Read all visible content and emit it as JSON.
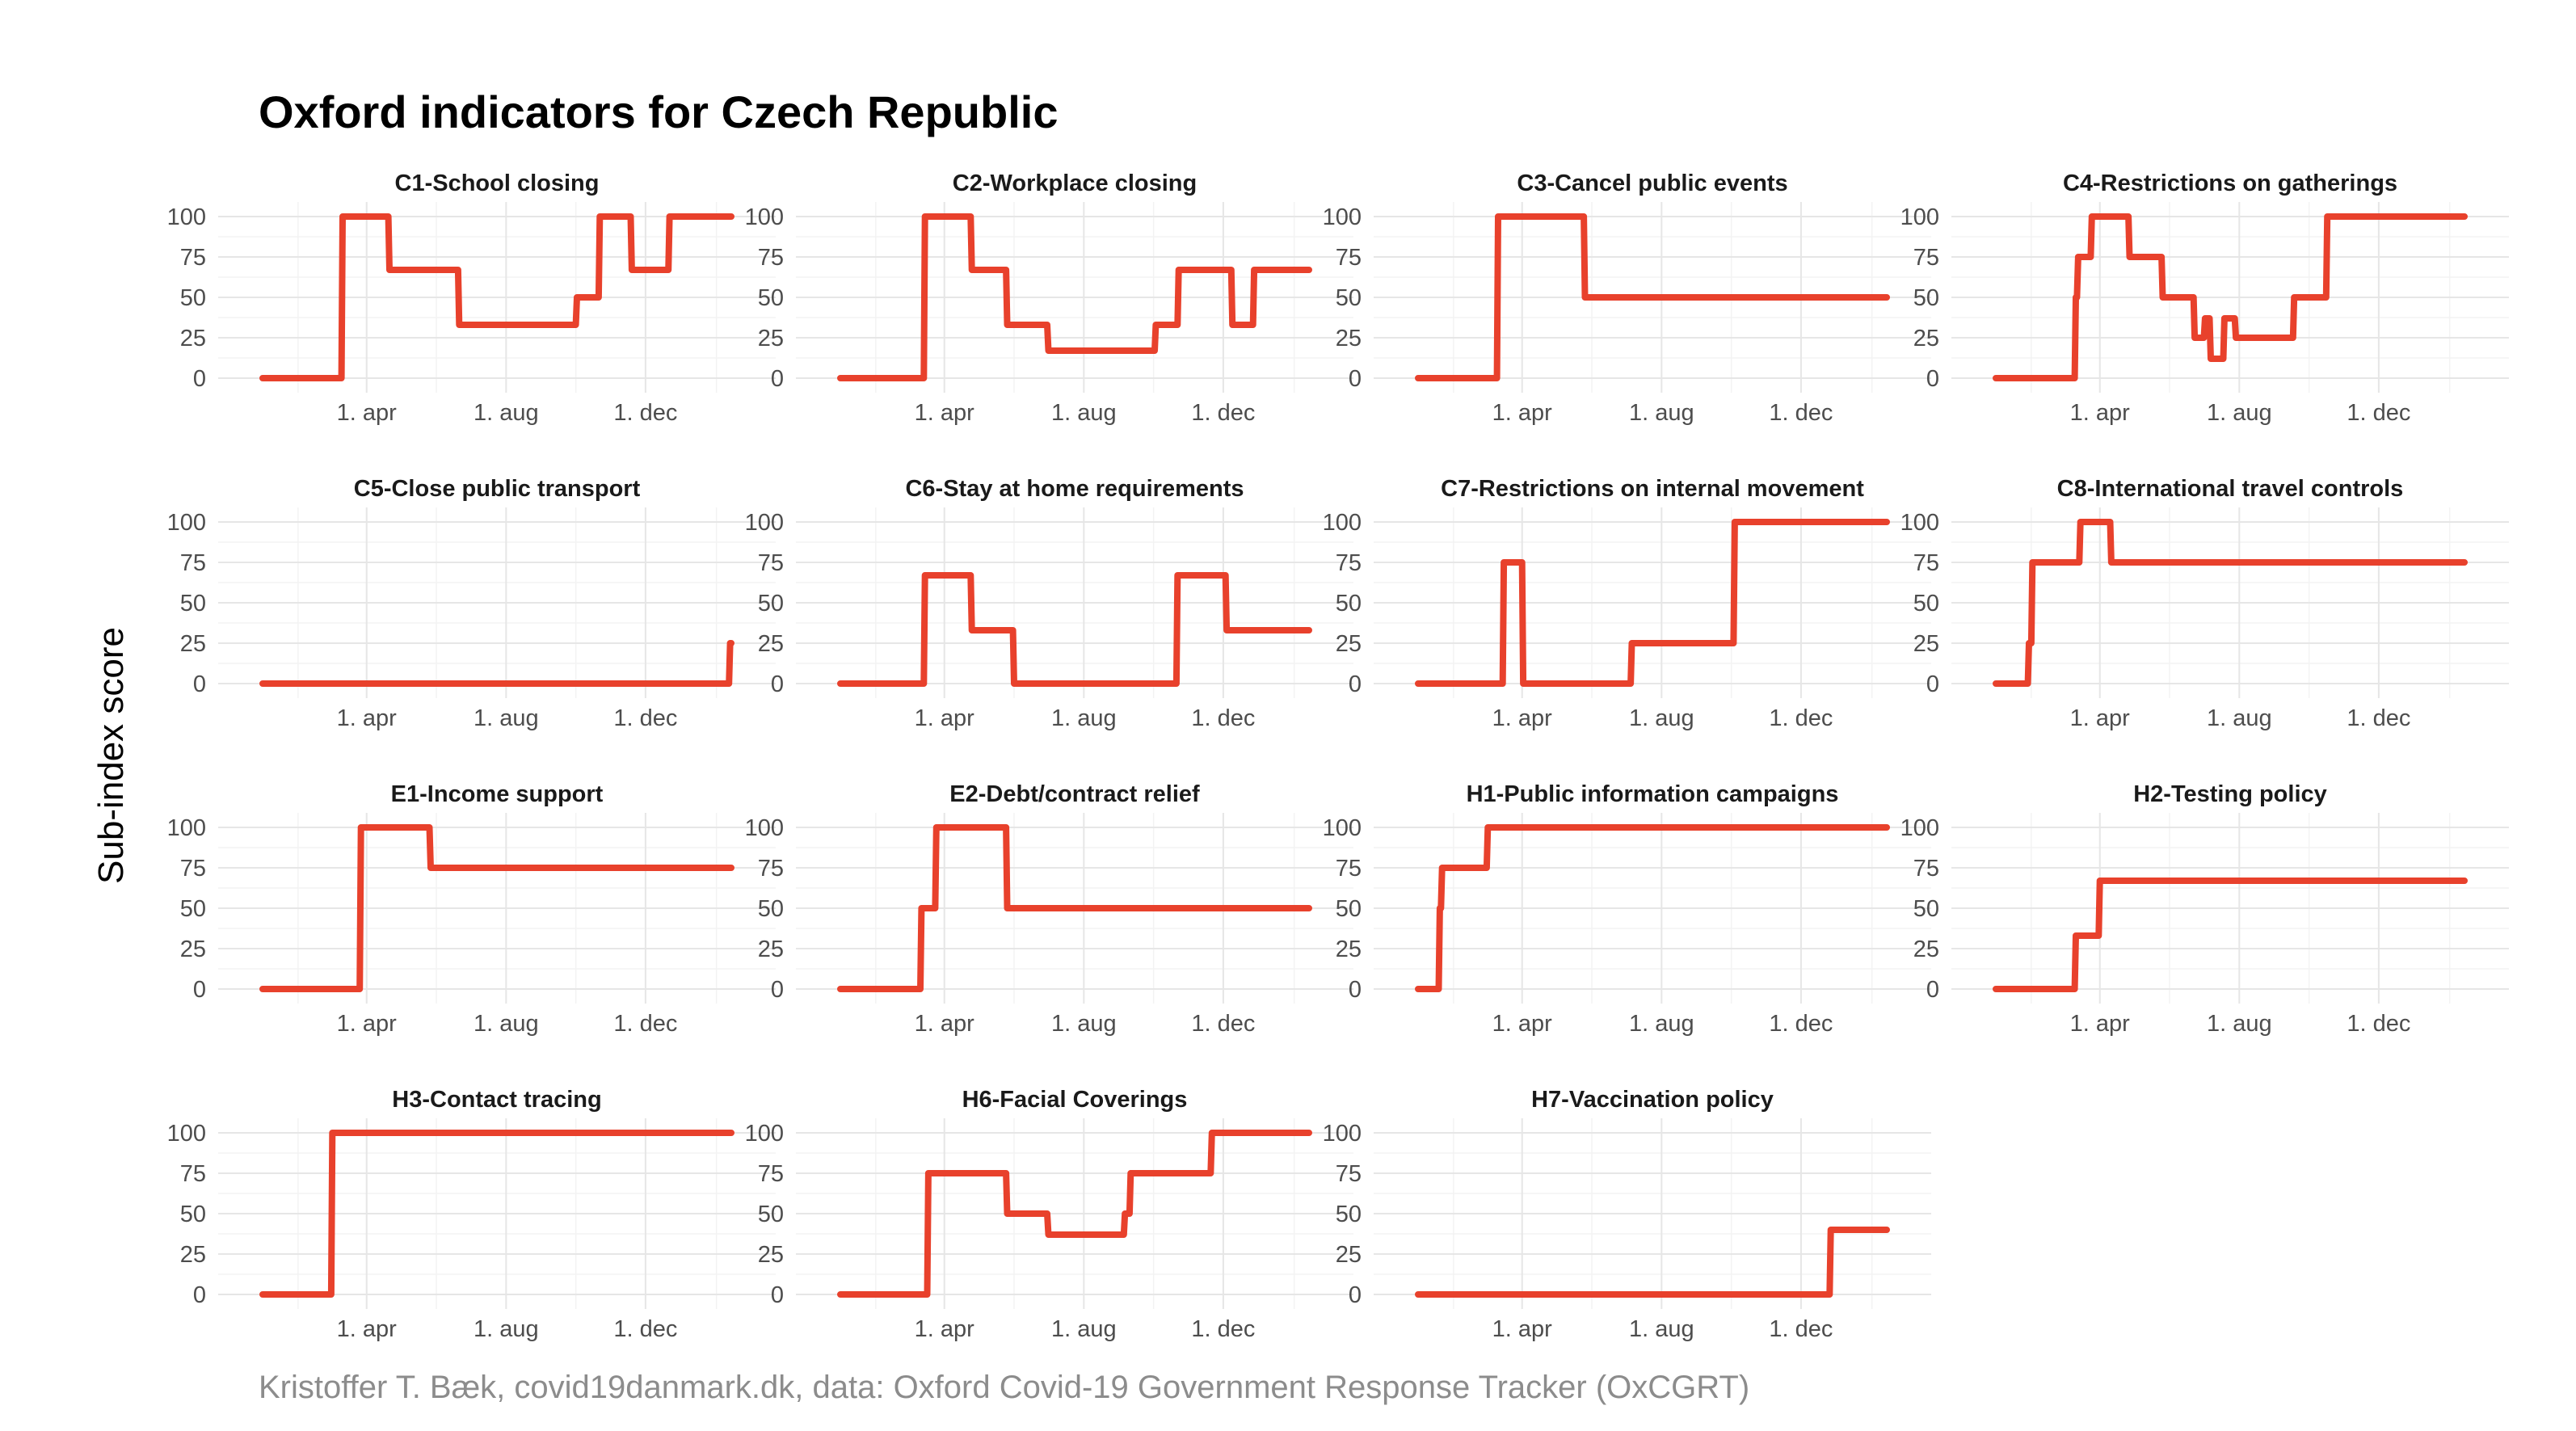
{
  "title": "Oxford indicators for Czech Republic",
  "y_axis_label": "Sub-index score",
  "caption": "Kristoffer T. Bæk, covid19danmark.dk, data: Oxford Covid-19 Government Response Tracker (OxCGRT)",
  "colors": {
    "line": "#e8412c",
    "grid": "#e6e6e6"
  },
  "chart_data": [
    {
      "type": "line",
      "title": "C1-School closing",
      "ylim": [
        0,
        100
      ],
      "yticks": [
        0,
        25,
        50,
        75,
        100
      ],
      "x_ticks": [
        "1. apr",
        "1. aug",
        "1. dec"
      ],
      "x": [
        "2020-01-01",
        "2020-03-10",
        "2020-03-11",
        "2020-04-20",
        "2020-04-21",
        "2020-06-20",
        "2020-06-21",
        "2020-10-01",
        "2020-10-02",
        "2020-10-21",
        "2020-10-22",
        "2020-11-18",
        "2020-11-19",
        "2020-12-21",
        "2020-12-22",
        "2021-02-14"
      ],
      "values": [
        0,
        0,
        100,
        100,
        67,
        67,
        33,
        33,
        50,
        50,
        100,
        100,
        67,
        67,
        100,
        100
      ]
    },
    {
      "type": "line",
      "title": "C2-Workplace closing",
      "ylim": [
        0,
        100
      ],
      "yticks": [
        0,
        25,
        50,
        75,
        100
      ],
      "x_ticks": [
        "1. apr",
        "1. aug",
        "1. dec"
      ],
      "x": [
        "2020-01-01",
        "2020-03-14",
        "2020-03-15",
        "2020-04-24",
        "2020-04-25",
        "2020-05-25",
        "2020-05-26",
        "2020-06-30",
        "2020-07-01",
        "2020-10-02",
        "2020-10-03",
        "2020-10-22",
        "2020-10-23",
        "2020-12-08",
        "2020-12-09",
        "2020-12-27",
        "2020-12-28",
        "2021-02-14"
      ],
      "values": [
        0,
        0,
        100,
        100,
        67,
        67,
        33,
        33,
        17,
        17,
        33,
        33,
        67,
        67,
        33,
        33,
        67,
        67
      ]
    },
    {
      "type": "line",
      "title": "C3-Cancel public events",
      "ylim": [
        0,
        100
      ],
      "yticks": [
        0,
        25,
        50,
        75,
        100
      ],
      "x_ticks": [
        "1. apr",
        "1. aug",
        "1. dec"
      ],
      "x": [
        "2020-01-01",
        "2020-03-10",
        "2020-03-11",
        "2020-05-25",
        "2020-05-26",
        "2021-02-14"
      ],
      "values": [
        0,
        0,
        100,
        100,
        50,
        50
      ]
    },
    {
      "type": "line",
      "title": "C4-Restrictions on gatherings",
      "ylim": [
        0,
        100
      ],
      "yticks": [
        0,
        25,
        50,
        75,
        100
      ],
      "x_ticks": [
        "1. apr",
        "1. aug",
        "1. dec"
      ],
      "x": [
        "2020-01-01",
        "2020-03-10",
        "2020-03-11",
        "2020-03-12",
        "2020-03-13",
        "2020-03-24",
        "2020-03-25",
        "2020-04-26",
        "2020-04-27",
        "2020-05-25",
        "2020-05-26",
        "2020-06-22",
        "2020-06-23",
        "2020-07-01",
        "2020-07-02",
        "2020-07-06",
        "2020-07-07",
        "2020-07-18",
        "2020-07-19",
        "2020-07-28",
        "2020-07-29",
        "2020-09-17",
        "2020-09-18",
        "2020-10-16",
        "2020-10-17",
        "2021-02-14"
      ],
      "values": [
        0,
        0,
        50,
        50,
        75,
        75,
        100,
        100,
        75,
        75,
        50,
        50,
        25,
        25,
        37,
        37,
        12,
        12,
        37,
        37,
        25,
        25,
        50,
        50,
        100,
        100
      ]
    },
    {
      "type": "line",
      "title": "C5-Close public transport",
      "ylim": [
        0,
        100
      ],
      "yticks": [
        0,
        25,
        50,
        75,
        100
      ],
      "x_ticks": [
        "1. apr",
        "1. dec",
        "1. aug"
      ],
      "x": [
        "2020-01-01",
        "2021-02-12",
        "2021-02-13",
        "2021-02-14"
      ],
      "values": [
        0,
        0,
        25,
        25
      ]
    },
    {
      "type": "line",
      "title": "C6-Stay at home requirements",
      "ylim": [
        0,
        100
      ],
      "yticks": [
        0,
        25,
        50,
        75,
        100
      ],
      "x_ticks": [
        "1. apr",
        "1. aug",
        "1. dec"
      ],
      "x": [
        "2020-01-01",
        "2020-03-14",
        "2020-03-15",
        "2020-04-24",
        "2020-04-25",
        "2020-05-31",
        "2020-06-01",
        "2020-10-21",
        "2020-10-22",
        "2020-12-03",
        "2020-12-04",
        "2021-02-14"
      ],
      "values": [
        0,
        0,
        67,
        67,
        33,
        33,
        0,
        0,
        67,
        67,
        33,
        33
      ]
    },
    {
      "type": "line",
      "title": "C7-Restrictions on internal movement",
      "ylim": [
        0,
        100
      ],
      "yticks": [
        0,
        25,
        50,
        75,
        100
      ],
      "x_ticks": [
        "1. apr",
        "1. aug",
        "1. dec"
      ],
      "x": [
        "2020-01-01",
        "2020-03-15",
        "2020-03-16",
        "2020-04-01",
        "2020-04-02",
        "2020-07-05",
        "2020-07-06",
        "2020-10-03",
        "2020-10-04",
        "2021-02-14"
      ],
      "values": [
        0,
        0,
        75,
        75,
        0,
        0,
        25,
        25,
        100,
        100
      ]
    },
    {
      "type": "line",
      "title": "C8-International travel controls",
      "ylim": [
        0,
        100
      ],
      "yticks": [
        0,
        25,
        50,
        75,
        100
      ],
      "x_ticks": [
        "1. apr",
        "1. aug",
        "1. dec"
      ],
      "x": [
        "2020-01-01",
        "2020-01-29",
        "2020-01-30",
        "2020-02-01",
        "2020-02-02",
        "2020-03-14",
        "2020-03-15",
        "2020-04-10",
        "2020-04-11",
        "2021-02-14"
      ],
      "values": [
        0,
        0,
        25,
        25,
        75,
        75,
        100,
        100,
        75,
        75
      ]
    },
    {
      "type": "line",
      "title": "E1-Income support",
      "ylim": [
        0,
        100
      ],
      "yticks": [
        0,
        25,
        50,
        75,
        100
      ],
      "x_ticks": [
        "1. apr",
        "1. aug",
        "1. dec"
      ],
      "x": [
        "2020-01-01",
        "2020-03-26",
        "2020-03-27",
        "2020-05-26",
        "2020-05-27",
        "2021-02-14"
      ],
      "values": [
        0,
        0,
        100,
        100,
        75,
        75
      ]
    },
    {
      "type": "line",
      "title": "E2-Debt/contract relief",
      "ylim": [
        0,
        100
      ],
      "yticks": [
        0,
        25,
        50,
        75,
        100
      ],
      "x_ticks": [
        "1. apr",
        "1. aug",
        "1. dec"
      ],
      "x": [
        "2020-01-01",
        "2020-03-11",
        "2020-03-12",
        "2020-03-24",
        "2020-03-25",
        "2020-05-25",
        "2020-05-26",
        "2021-02-14"
      ],
      "values": [
        0,
        0,
        50,
        50,
        100,
        100,
        50,
        50
      ]
    },
    {
      "type": "line",
      "title": "H1-Public information campaigns",
      "ylim": [
        0,
        100
      ],
      "yticks": [
        0,
        25,
        50,
        75,
        100
      ],
      "x_ticks": [
        "1. apr",
        "1. aug",
        "1. dec"
      ],
      "x": [
        "2020-01-01",
        "2020-01-19",
        "2020-01-20",
        "2020-01-21",
        "2020-01-22",
        "2020-03-01",
        "2020-03-02",
        "2021-02-14"
      ],
      "values": [
        0,
        0,
        50,
        50,
        75,
        75,
        100,
        100
      ]
    },
    {
      "type": "line",
      "title": "H2-Testing policy",
      "ylim": [
        0,
        100
      ],
      "yticks": [
        0,
        25,
        50,
        75,
        100
      ],
      "x_ticks": [
        "1. apr",
        "1. aug",
        "1. dec"
      ],
      "x": [
        "2020-01-01",
        "2020-03-10",
        "2020-03-11",
        "2020-03-31",
        "2020-04-01",
        "2021-02-14"
      ],
      "values": [
        0,
        0,
        33,
        33,
        67,
        67
      ]
    },
    {
      "type": "line",
      "title": "H3-Contact tracing",
      "ylim": [
        0,
        100
      ],
      "yticks": [
        0,
        25,
        50,
        75,
        100
      ],
      "x_ticks": [
        "1. apr",
        "1. aug",
        "1. dec"
      ],
      "x": [
        "2020-01-01",
        "2020-03-01",
        "2020-03-02",
        "2021-02-14"
      ],
      "values": [
        0,
        0,
        100,
        100
      ]
    },
    {
      "type": "line",
      "title": "H6-Facial Coverings",
      "ylim": [
        0,
        100
      ],
      "yticks": [
        0,
        25,
        50,
        75,
        100
      ],
      "x_ticks": [
        "1. apr",
        "1. aug",
        "1. dec"
      ],
      "x": [
        "2020-01-01",
        "2020-03-17",
        "2020-03-18",
        "2020-05-25",
        "2020-05-26",
        "2020-06-30",
        "2020-07-01",
        "2020-09-05",
        "2020-09-06",
        "2020-09-10",
        "2020-09-11",
        "2020-11-20",
        "2020-11-21",
        "2021-02-14"
      ],
      "values": [
        0,
        0,
        75,
        75,
        50,
        50,
        37,
        37,
        50,
        50,
        75,
        75,
        100,
        100
      ]
    },
    {
      "type": "line",
      "title": "H7-Vaccination policy",
      "ylim": [
        0,
        100
      ],
      "yticks": [
        0,
        25,
        50,
        75,
        100
      ],
      "x_ticks": [
        "1. apr",
        "1. aug",
        "1. dec"
      ],
      "x": [
        "2020-01-01",
        "2020-12-26",
        "2020-12-27",
        "2021-02-14"
      ],
      "values": [
        0,
        0,
        40,
        40
      ]
    }
  ]
}
